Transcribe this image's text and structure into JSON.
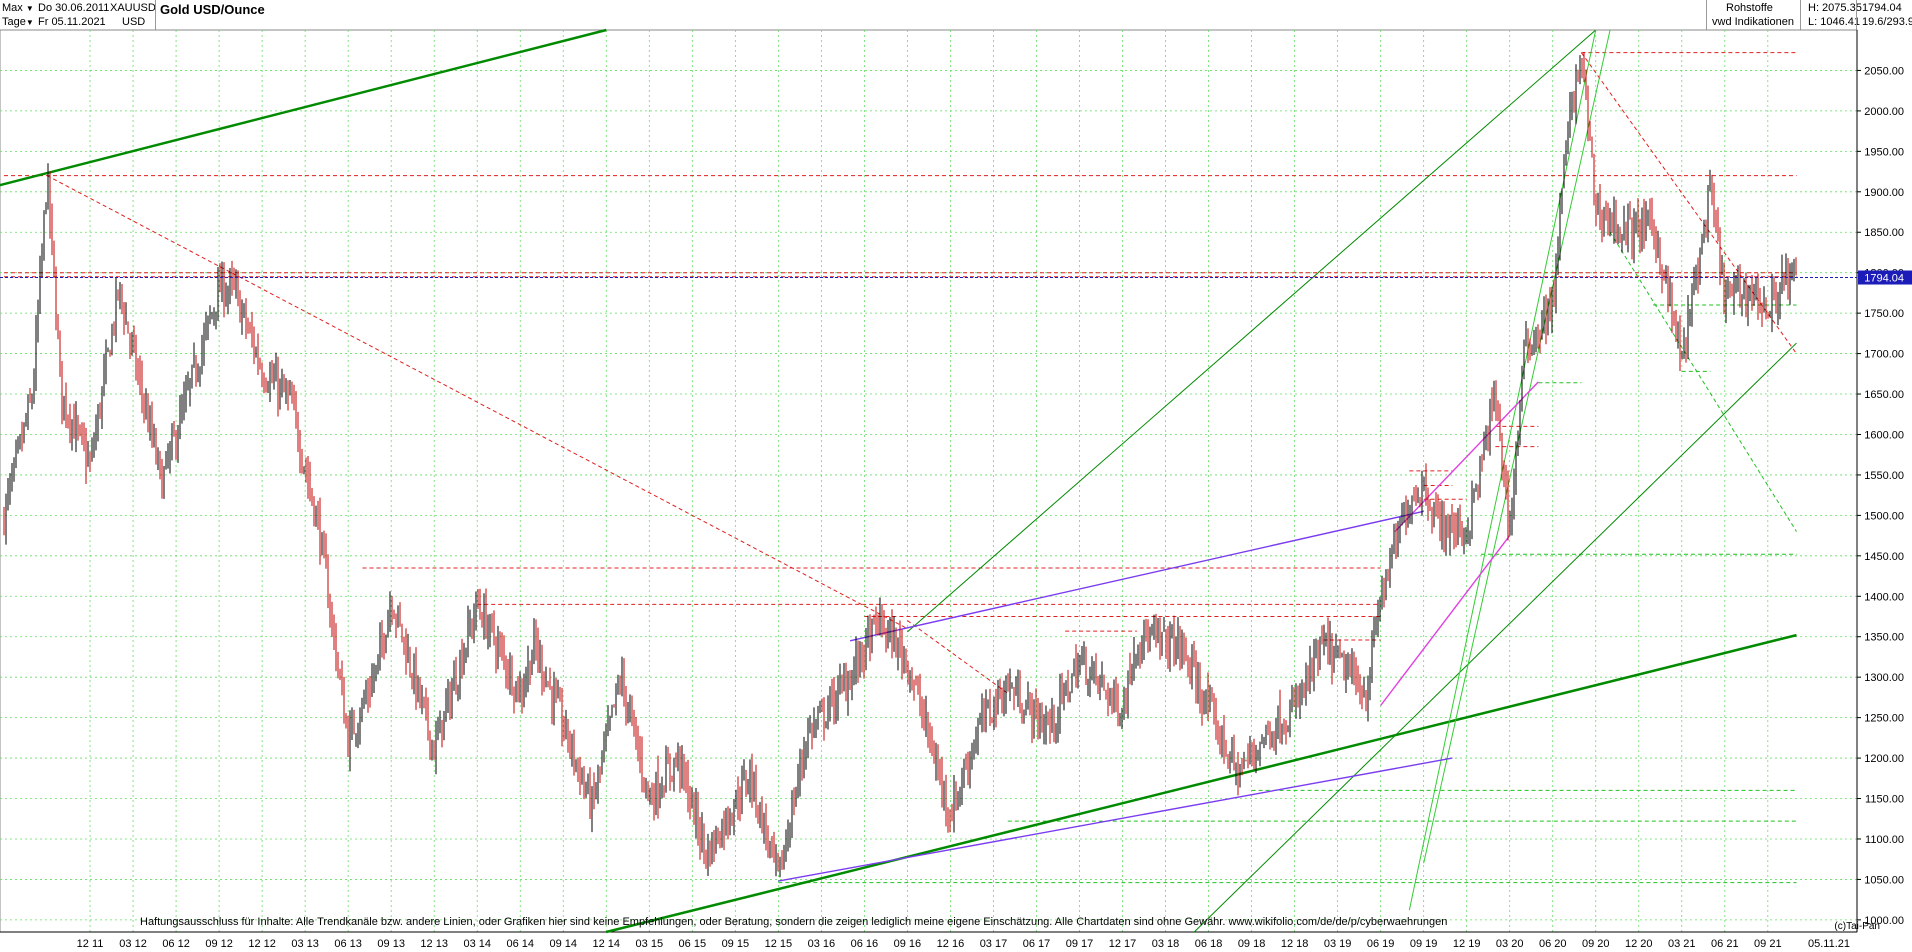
{
  "header": {
    "period_label": "Max",
    "unit_label": "Tage",
    "start_date": "Do 30.06.2011",
    "end_date": "Fr 05.11.2021",
    "symbol": "XAUUSD",
    "currency": "USD",
    "title": "Gold USD/Ounce",
    "category": "Rohstoffe",
    "provider": "vwd Indikationen",
    "high": "H: 2075.35",
    "low": "L: 1046.41",
    "last": "1794.04",
    "change": "19.6/293.9"
  },
  "disclaimer": "Haftungsausschluss für Inhalte: Alle Trendkanäle bzw. andere Linien, oder Grafiken hier sind keine Empfehlungen, oder Beratung, sondern die zeigen lediglich meine eigene Einschätzung. Alle Chartdaten sind ohne Gewähr.  www.wikifolio.com/de/de/p/cyberwaehrungen",
  "copyright": "(c)Tai-Pan",
  "colors": {
    "candle_up": "#000000",
    "candle_down": "#c00000",
    "trend_green": "#008a00",
    "light_green": "#33cc33",
    "purple": "#7a3cf0",
    "magenta": "#e040e0",
    "red_dashed": "#e02020",
    "price_tag": "#1c1cb8",
    "grid": "#66dd66"
  },
  "chart_data": {
    "type": "line",
    "title": "Gold USD/Ounce",
    "ylim": [
      985,
      2100
    ],
    "y_ticks": [
      1000,
      1050,
      1100,
      1150,
      1200,
      1250,
      1300,
      1350,
      1400,
      1450,
      1500,
      1550,
      1600,
      1650,
      1700,
      1750,
      1800,
      1850,
      1900,
      1950,
      2000,
      2050
    ],
    "x_ticks": [
      "12 11",
      "03 12",
      "06 12",
      "09 12",
      "12 12",
      "03 13",
      "06 13",
      "09 13",
      "12 13",
      "03 14",
      "06 14",
      "09 14",
      "12 14",
      "03 15",
      "06 15",
      "09 15",
      "12 15",
      "03 16",
      "06 16",
      "09 16",
      "12 16",
      "03 17",
      "06 17",
      "09 17",
      "12 17",
      "03 18",
      "06 18",
      "09 18",
      "12 18",
      "03 19",
      "06 19",
      "09 19",
      "12 19",
      "03 20",
      "06 20",
      "09 20",
      "12 20",
      "03 21",
      "06 21",
      "09 21",
      "05.11.21"
    ],
    "last_price": 1794.04,
    "high": 2075.35,
    "low": 1046.41,
    "series": [
      {
        "x": [
          "06 11",
          "08 11",
          "09 11",
          "10 11",
          "12 11",
          "02 12",
          "05 12",
          "09 12",
          "10 12",
          "12 12",
          "02 13",
          "04 13",
          "06 13",
          "08 13",
          "09 13",
          "12 13",
          "03 14",
          "06 14",
          "07 14",
          "11 14",
          "01 15",
          "03 15",
          "05 15",
          "07 15",
          "10 15",
          "12 15",
          "02 16",
          "03 16",
          "05 16",
          "07 16",
          "09 16",
          "12 16",
          "02 17",
          "04 17",
          "06 17",
          "07 17",
          "09 17",
          "12 17",
          "01 18",
          "04 18",
          "06 18",
          "08 18",
          "10 18",
          "12 18",
          "02 19",
          "05 19",
          "06 19",
          "08 19",
          "09 19",
          "10 19",
          "12 19",
          "01 20",
          "02 20",
          "03 20",
          "04 20",
          "06 20",
          "07 20",
          "08 20",
          "09 20",
          "11 20",
          "01 21",
          "03 21",
          "05 21",
          "06 21",
          "08 21",
          "09 21",
          "10 21",
          "11 21"
        ],
        "values": [
          1500,
          1650,
          1920,
          1650,
          1560,
          1780,
          1540,
          1780,
          1780,
          1680,
          1640,
          1480,
          1220,
          1310,
          1400,
          1210,
          1390,
          1280,
          1340,
          1140,
          1300,
          1150,
          1200,
          1080,
          1180,
          1050,
          1230,
          1250,
          1300,
          1370,
          1320,
          1130,
          1240,
          1290,
          1250,
          1240,
          1320,
          1260,
          1350,
          1340,
          1260,
          1180,
          1230,
          1260,
          1340,
          1280,
          1400,
          1520,
          1540,
          1490,
          1480,
          1560,
          1650,
          1480,
          1700,
          1760,
          1970,
          2070,
          1880,
          1850,
          1860,
          1690,
          1900,
          1770,
          1780,
          1750,
          1790,
          1794
        ]
      }
    ]
  }
}
